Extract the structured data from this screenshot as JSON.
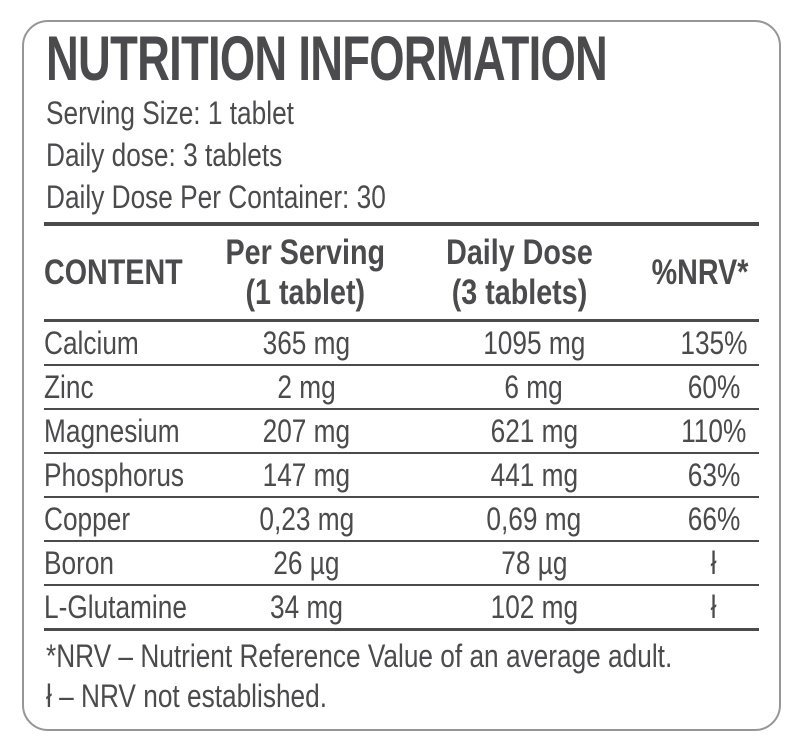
{
  "title": "NUTRITION INFORMATION",
  "meta": {
    "serving_size": "Serving Size: 1 tablet",
    "daily_dose": "Daily dose: 3 tablets",
    "daily_dose_per_container": "Daily Dose Per Container: 30"
  },
  "table": {
    "headers": {
      "content": "CONTENT",
      "per_serving_line1": "Per Serving",
      "per_serving_line2": "(1 tablet)",
      "daily_dose_line1": "Daily Dose",
      "daily_dose_line2": "(3 tablets)",
      "nrv": "%NRV*"
    },
    "rows": [
      {
        "name": "Calcium",
        "per_serving": "365 mg",
        "daily_dose": "1095 mg",
        "nrv": "135%"
      },
      {
        "name": "Zinc",
        "per_serving": "2 mg",
        "daily_dose": "6 mg",
        "nrv": "60%"
      },
      {
        "name": "Magnesium",
        "per_serving": "207 mg",
        "daily_dose": "621 mg",
        "nrv": "110%"
      },
      {
        "name": "Phosphorus",
        "per_serving": "147 mg",
        "daily_dose": "441 mg",
        "nrv": "63%"
      },
      {
        "name": "Copper",
        "per_serving": "0,23 mg",
        "daily_dose": "0,69 mg",
        "nrv": "66%"
      },
      {
        "name": "Boron",
        "per_serving": "26 µg",
        "daily_dose": "78 µg",
        "nrv": "ł"
      },
      {
        "name": "L-Glutamine",
        "per_serving": "34 mg",
        "daily_dose": "102 mg",
        "nrv": "ł"
      }
    ]
  },
  "footnotes": {
    "nrv_definition": "*NRV – Nutrient Reference Value of an average adult.",
    "not_established": "ł – NRV not established."
  },
  "colors": {
    "text": "#4b4b4e",
    "rule": "#4b4b4e",
    "border": "#949699",
    "background": "#ffffff"
  }
}
